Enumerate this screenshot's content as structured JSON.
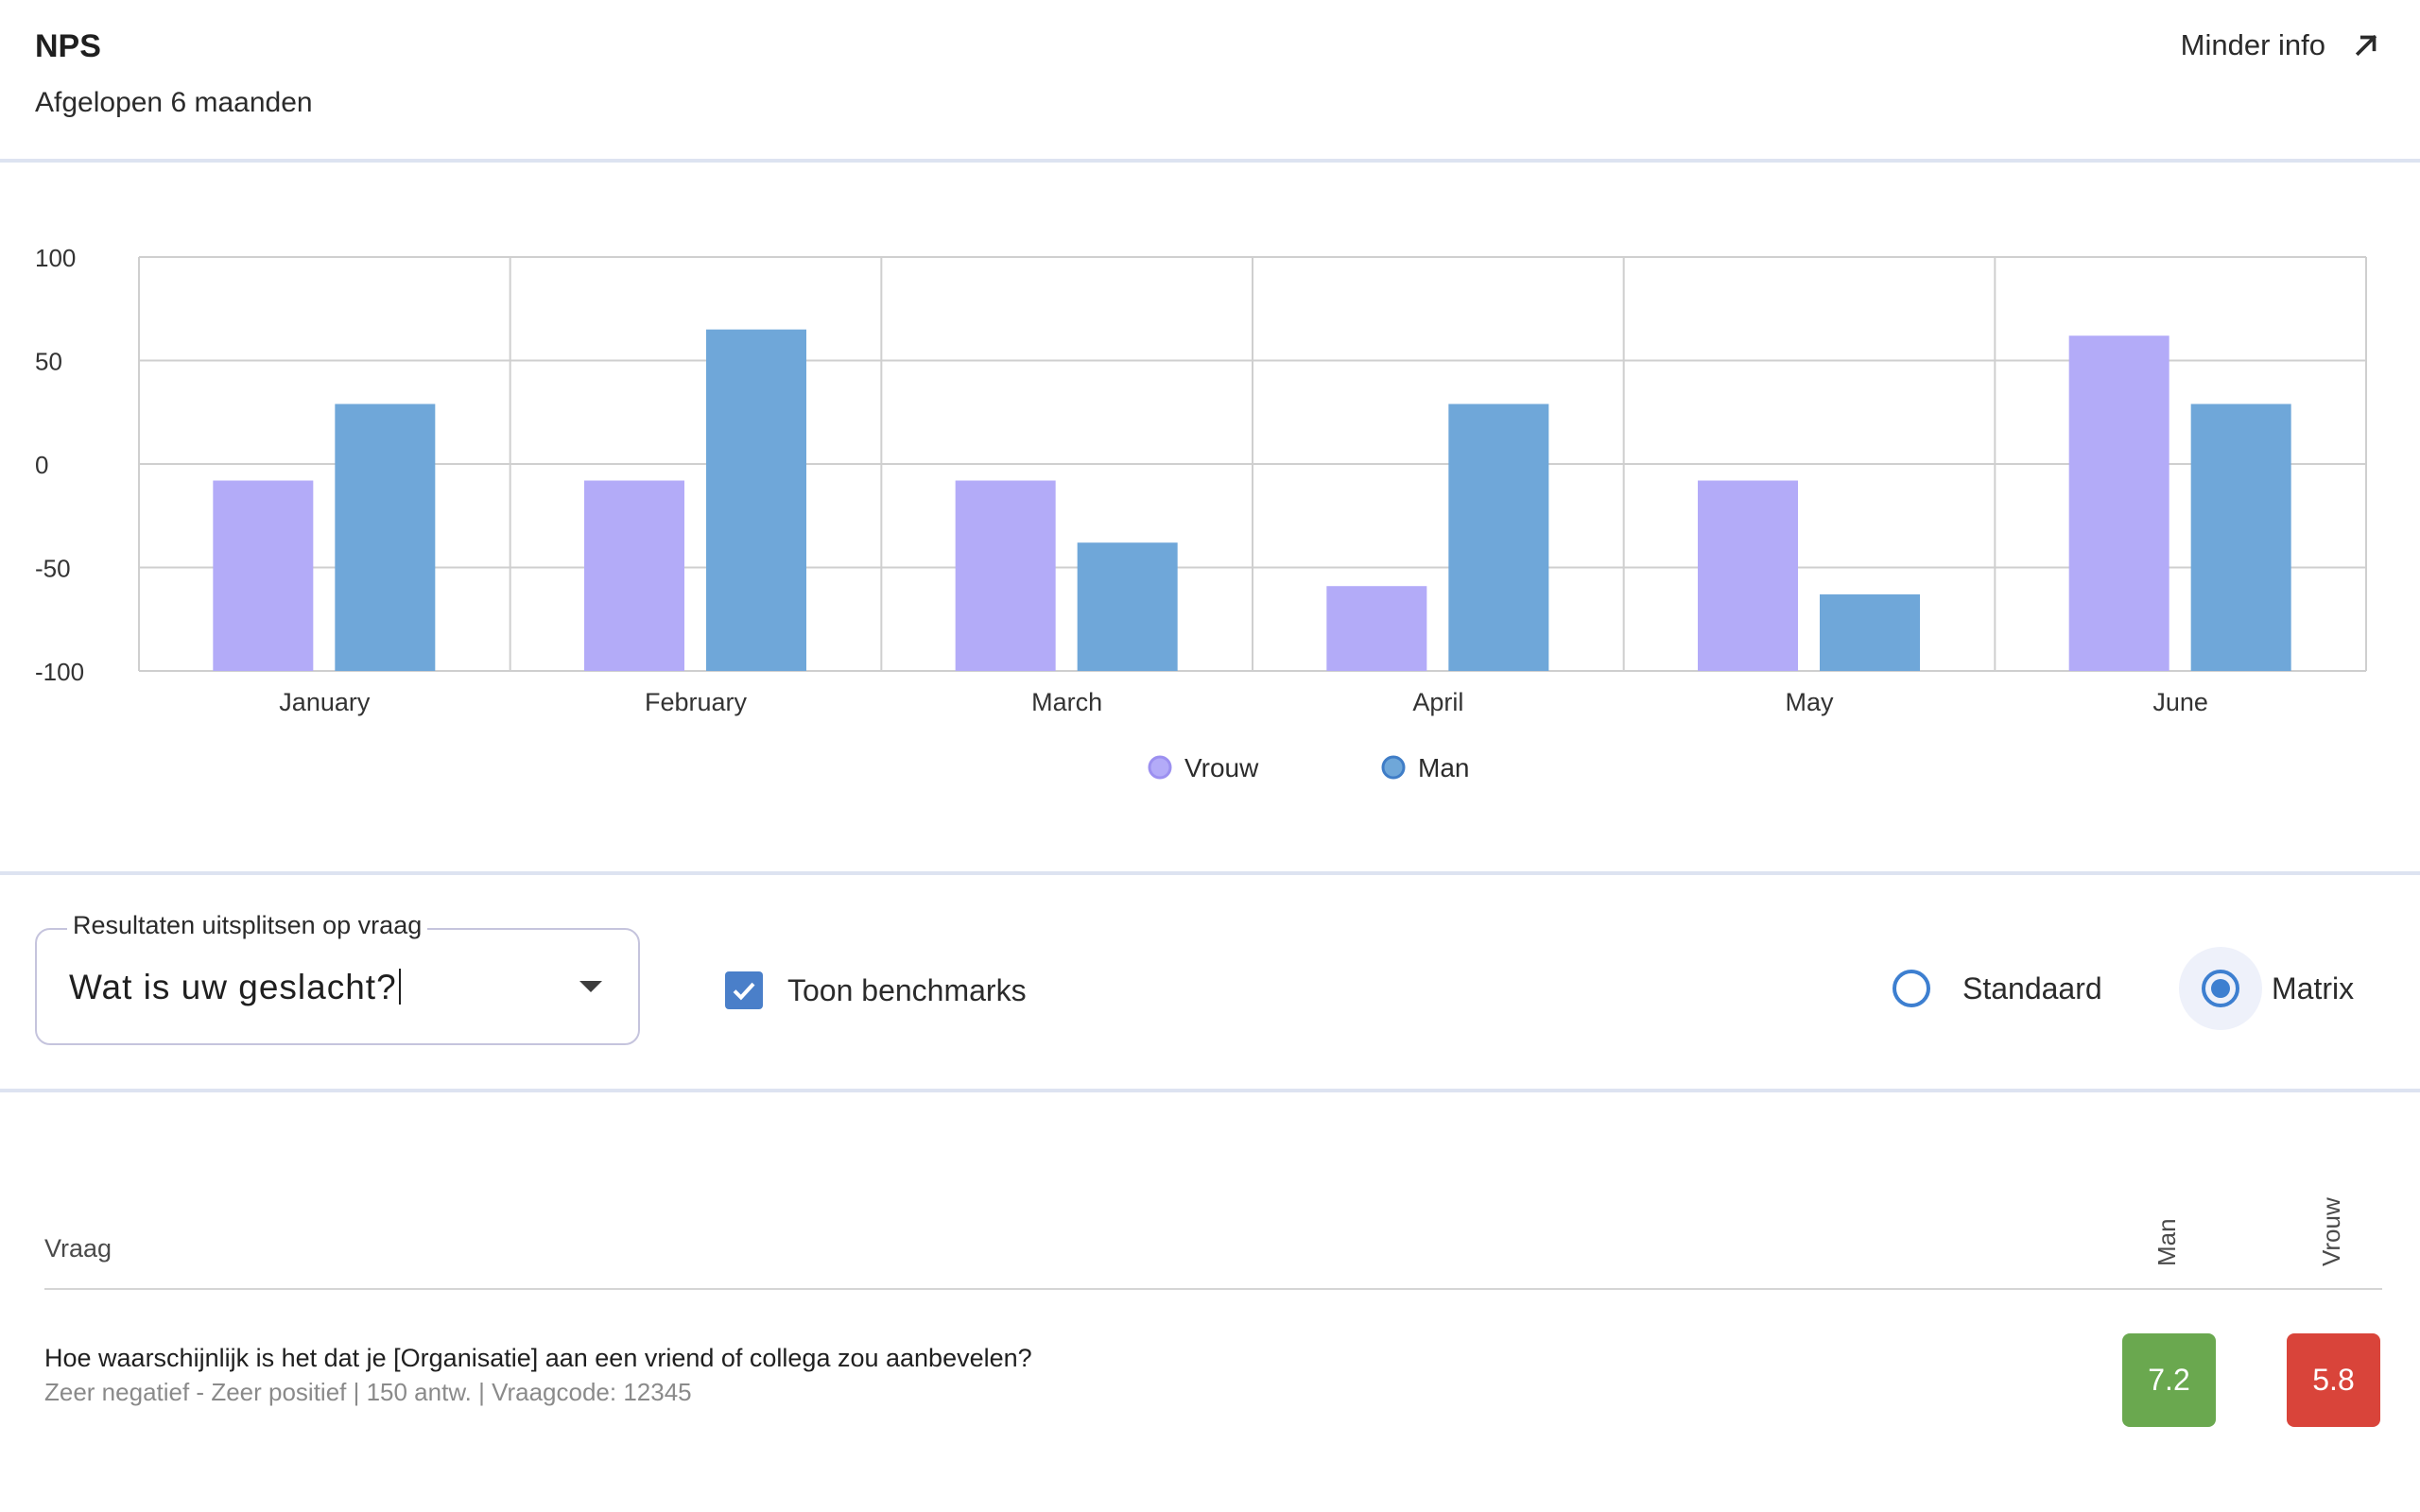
{
  "header": {
    "title": "NPS",
    "subtitle": "Afgelopen 6 maanden",
    "less_info_label": "Minder info",
    "less_info_icon": "arrow-up-right-icon"
  },
  "chart_data": {
    "type": "bar",
    "categories": [
      "January",
      "February",
      "March",
      "April",
      "May",
      "June"
    ],
    "series": [
      {
        "name": "Vrouw",
        "color": "#b3abf8",
        "values": [
          -8,
          -8,
          -8,
          -59,
          -8,
          62
        ]
      },
      {
        "name": "Man",
        "color": "#6fa7d9",
        "values": [
          29,
          65,
          -38,
          29,
          -63,
          29
        ]
      }
    ],
    "yticks": [
      100,
      50,
      0,
      -50,
      -100
    ],
    "ylim": [
      -100,
      100
    ],
    "grid": true,
    "legend_position": "bottom-center",
    "legend": [
      "Vrouw",
      "Man"
    ],
    "legend_colors": [
      "#b3abf8",
      "#6fa7d9"
    ],
    "legend_stroke_colors": [
      "#9c90f0",
      "#3f7dc7"
    ]
  },
  "controls": {
    "split_label": "Resultaten uitsplitsen op vraag",
    "split_value": "Wat is uw geslacht?",
    "benchmark_label": "Toon benchmarks",
    "benchmark_checked": true,
    "view_options": [
      "Standaard",
      "Matrix"
    ],
    "view_selected": "Matrix"
  },
  "table": {
    "question_header": "Vraag",
    "columns": [
      "Man",
      "Vrouw"
    ],
    "rows": [
      {
        "question": "Hoe waarschijnlijk is het dat je [Organisatie] aan een vriend of collega zou aanbevelen?",
        "meta": "Zeer negatief - Zeer positief | 150 antw. | Vraagcode: 12345",
        "scores": [
          "7.2",
          "5.8"
        ],
        "score_colors": [
          "#6aa84f",
          "#d9443a"
        ]
      }
    ]
  }
}
